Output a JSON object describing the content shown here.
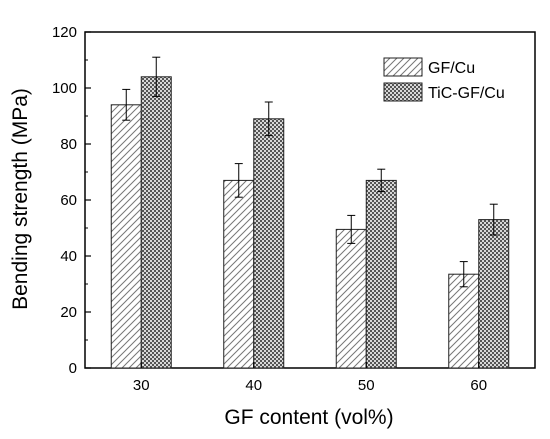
{
  "chart_data": {
    "type": "bar",
    "title": "",
    "xlabel": "GF content (vol%)",
    "ylabel": "Bending strength (MPa)",
    "categories": [
      "30",
      "40",
      "50",
      "60"
    ],
    "ylim": [
      0,
      120
    ],
    "yticks": [
      0,
      20,
      40,
      60,
      80,
      100,
      120
    ],
    "yticks_labels": [
      "0",
      "20",
      "40",
      "60",
      "80",
      "100",
      "120"
    ],
    "grid": false,
    "legend_position": "top-right",
    "series": [
      {
        "name": "GF/Cu",
        "pattern": "diagonal-hatch",
        "values": [
          94,
          67,
          49.5,
          33.5
        ],
        "errors": [
          5.5,
          6,
          5,
          4.5
        ]
      },
      {
        "name": "TiC-GF/Cu",
        "pattern": "crosshatch",
        "values": [
          104,
          89,
          67,
          53
        ],
        "errors": [
          7,
          6,
          4,
          5.5
        ]
      }
    ]
  }
}
